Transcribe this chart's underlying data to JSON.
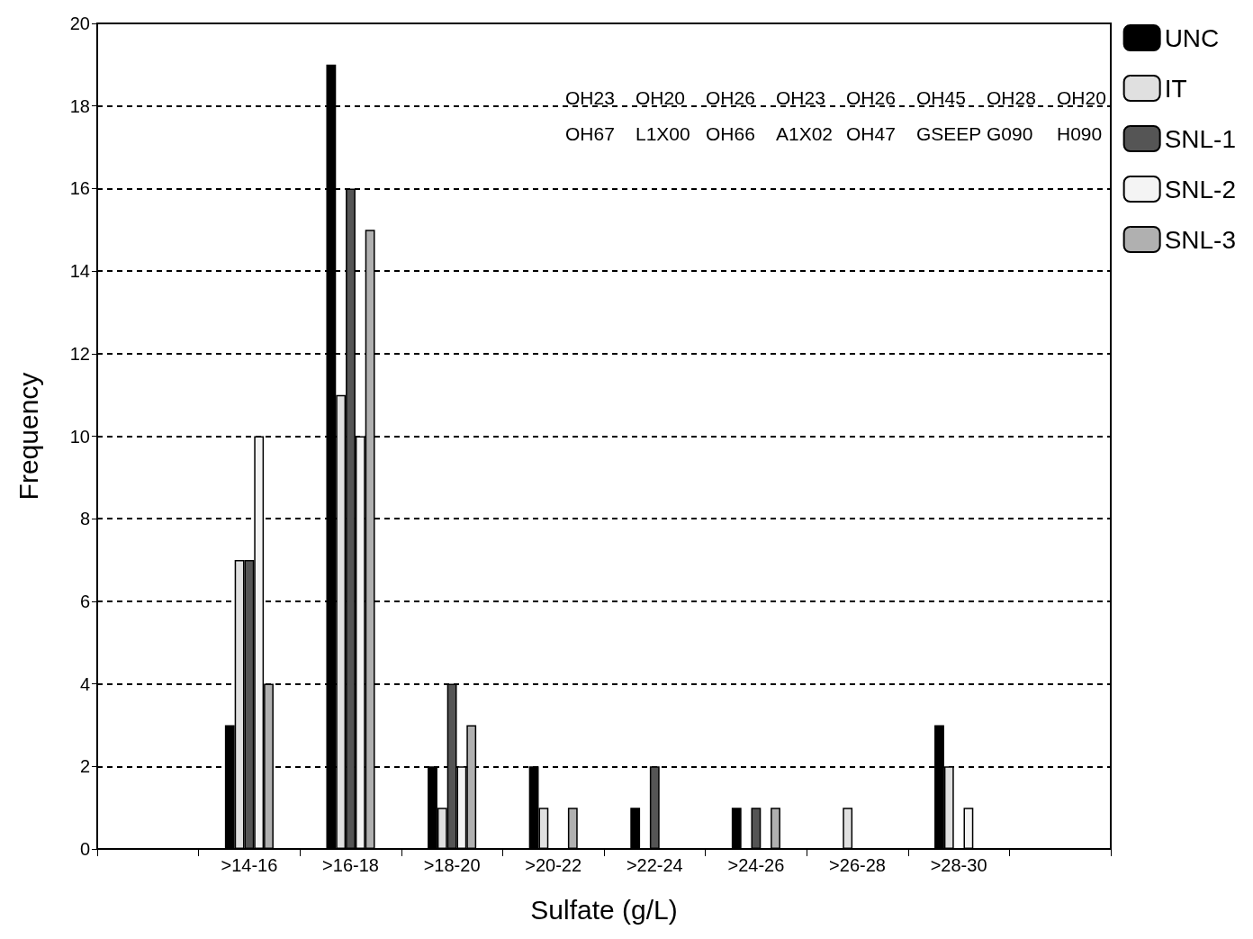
{
  "chart_data": {
    "type": "bar",
    "xlabel": "Sulfate (g/L)",
    "ylabel": "Frequency",
    "categories": [
      null,
      ">14-16",
      ">16-18",
      ">18-20",
      ">20-22",
      ">22-24",
      ">24-26",
      ">26-28",
      ">28-30",
      null
    ],
    "series": [
      {
        "name": "UNC",
        "color": "#000000",
        "values": [
          0,
          3,
          19,
          2,
          2,
          1,
          1,
          0,
          3,
          0
        ]
      },
      {
        "name": "IT",
        "color": "#e0e0e0",
        "values": [
          0,
          7,
          11,
          1,
          1,
          0,
          0,
          1,
          2,
          0
        ]
      },
      {
        "name": "SNL-1",
        "color": "#555555",
        "values": [
          0,
          7,
          16,
          4,
          0,
          2,
          1,
          0,
          0,
          0
        ]
      },
      {
        "name": "SNL-2",
        "color": "#f4f4f4",
        "values": [
          0,
          10,
          10,
          2,
          0,
          0,
          0,
          0,
          1,
          0
        ]
      },
      {
        "name": "SNL-3",
        "color": "#b0b0b0",
        "values": [
          0,
          4,
          15,
          3,
          1,
          0,
          1,
          0,
          0,
          0
        ]
      }
    ],
    "ylim": [
      0,
      20
    ],
    "yticks": [
      0,
      2,
      4,
      6,
      8,
      10,
      12,
      14,
      16,
      18,
      20
    ],
    "grid": "y",
    "legend": "right",
    "annotations": [
      "OH23",
      "OH20",
      "OH26",
      "OH23",
      "OH26",
      "OH45",
      "OH28",
      "OH20",
      "OH67",
      "L1X00",
      "OH66",
      "A1X02",
      "OH47",
      "GSEEP",
      "G090",
      "H090"
    ]
  }
}
